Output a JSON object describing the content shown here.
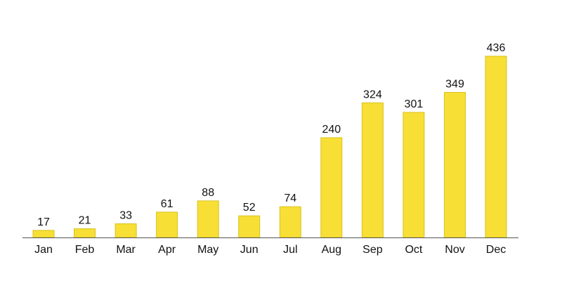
{
  "chart_data": {
    "type": "bar",
    "categories": [
      "Jan",
      "Feb",
      "Mar",
      "Apr",
      "May",
      "Jun",
      "Jul",
      "Aug",
      "Sep",
      "Oct",
      "Nov",
      "Dec"
    ],
    "values": [
      17,
      21,
      33,
      61,
      88,
      52,
      74,
      240,
      324,
      301,
      349,
      436
    ],
    "title": "",
    "xlabel": "",
    "ylabel": "",
    "ylim": [
      0,
      436
    ],
    "grid": false,
    "legend": "none",
    "data_labels": true,
    "colors": {
      "bar_fill": "#F7DF35",
      "bar_stroke": "#D9C21F",
      "axis": "#555555",
      "text": "#111111"
    }
  }
}
